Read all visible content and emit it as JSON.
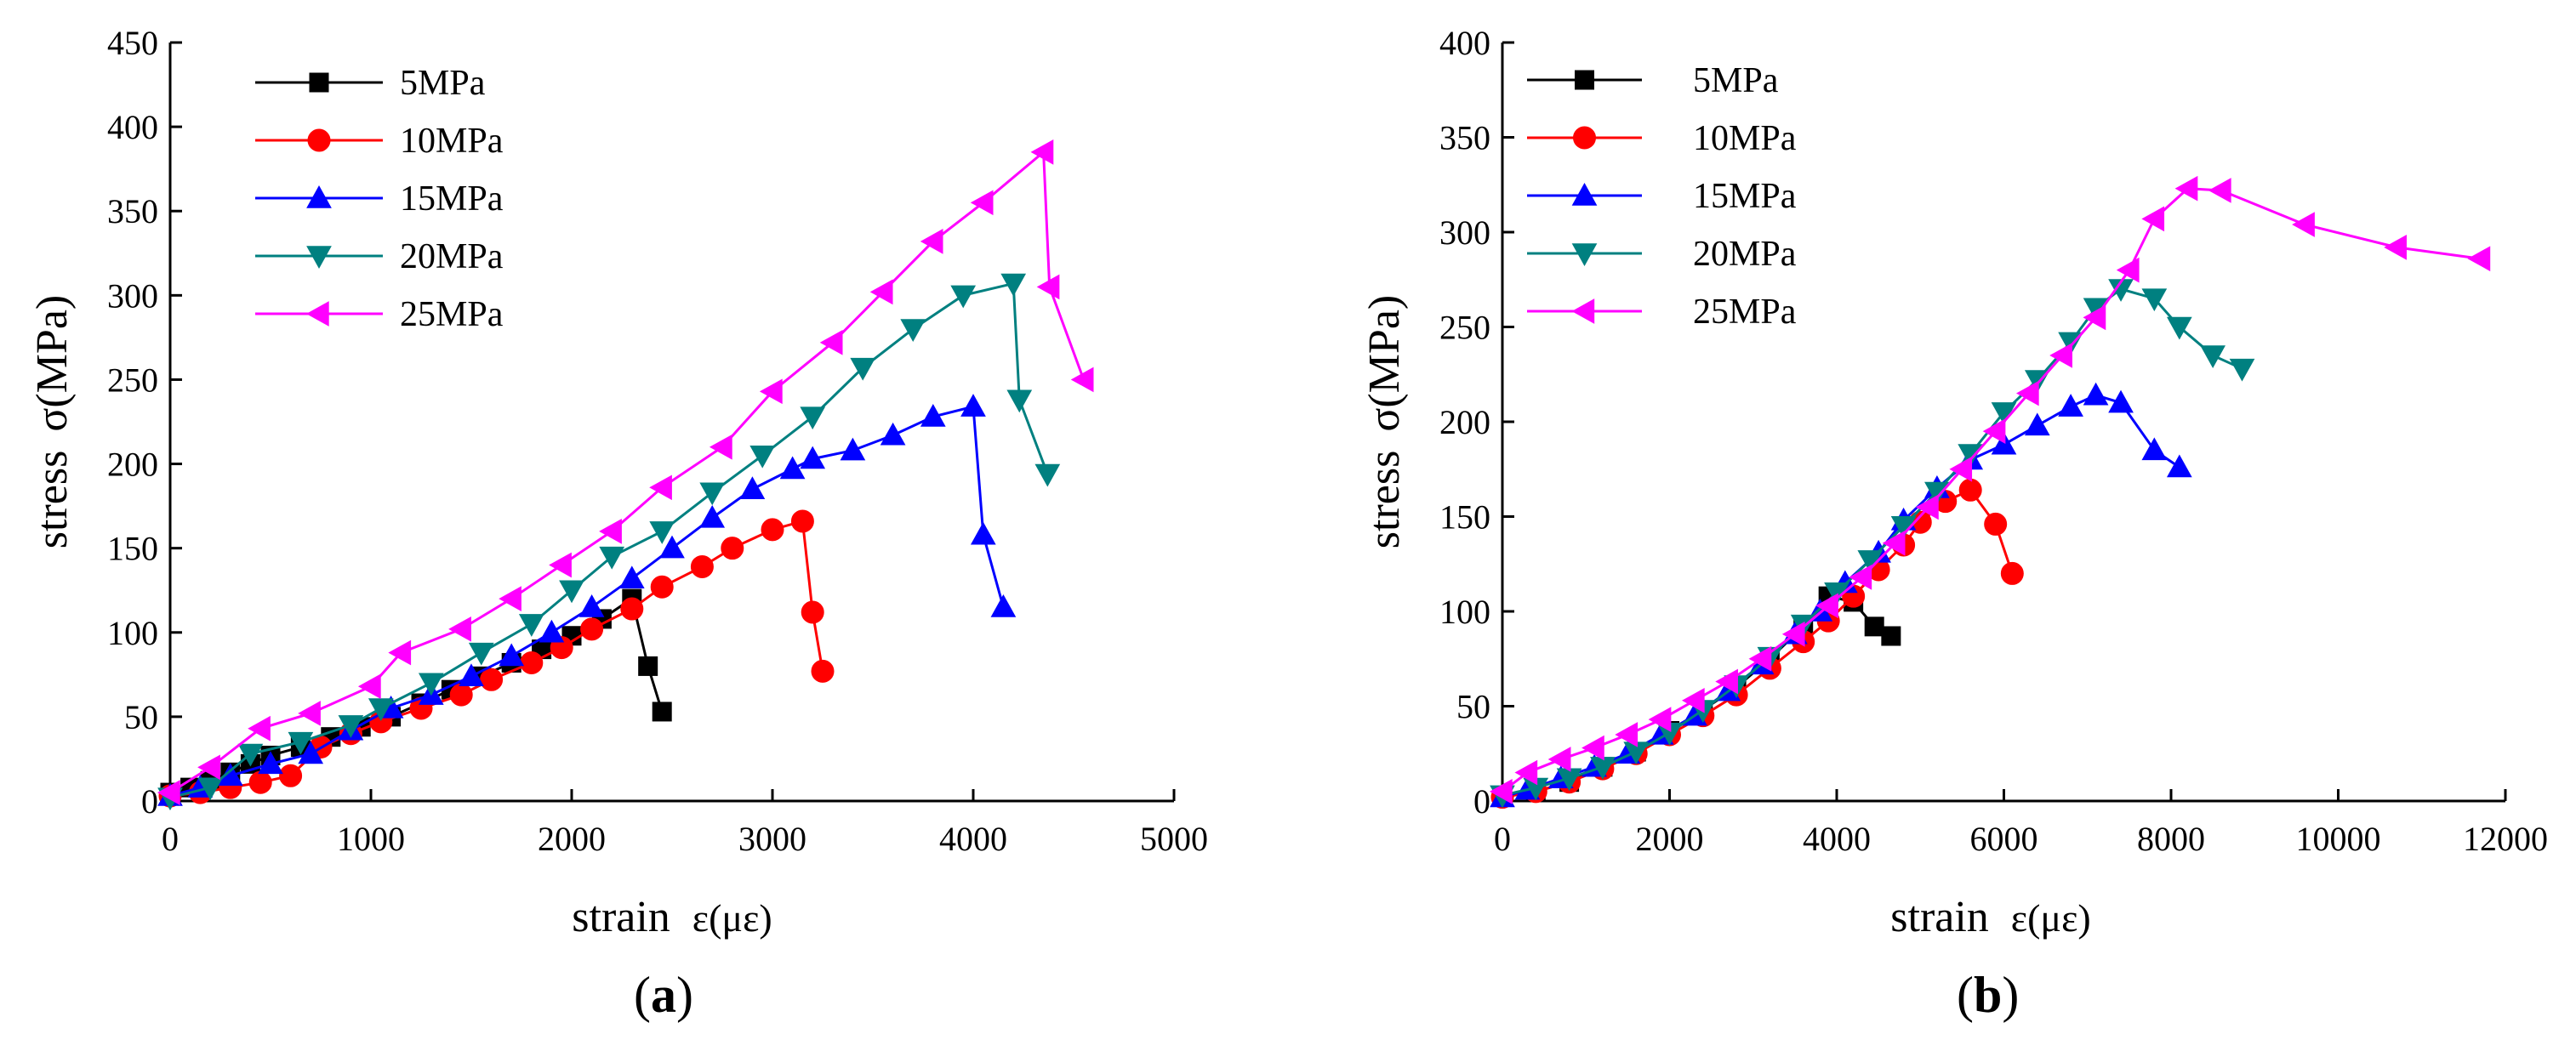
{
  "chart_data": [
    {
      "type": "line",
      "panel_label": "(a)",
      "panel_letter": "a",
      "xlabel_main": "strain",
      "xlabel_symbol": "ε(με)",
      "ylabel_main": "stress",
      "ylabel_symbol": "σ(MPa)",
      "xlim": [
        0,
        5000
      ],
      "ylim": [
        0,
        450
      ],
      "xticks": [
        0,
        1000,
        2000,
        3000,
        4000,
        5000
      ],
      "yticks": [
        0,
        50,
        100,
        150,
        200,
        250,
        300,
        350,
        400,
        450
      ],
      "legend_position": "top-left",
      "series": [
        {
          "name": "5MPa",
          "color": "#000000",
          "marker": "square",
          "x": [
            0,
            100,
            200,
            300,
            400,
            500,
            650,
            800,
            950,
            1100,
            1250,
            1400,
            1550,
            1700,
            1850,
            2000,
            2150,
            2300,
            2380,
            2450
          ],
          "y": [
            5,
            8,
            12,
            17,
            22,
            27,
            32,
            38,
            44,
            50,
            58,
            66,
            74,
            82,
            90,
            98,
            108,
            120,
            80,
            53
          ]
        },
        {
          "name": "10MPa",
          "color": "#ff0000",
          "marker": "circle",
          "x": [
            0,
            150,
            300,
            450,
            600,
            750,
            900,
            1050,
            1250,
            1450,
            1600,
            1800,
            1950,
            2100,
            2300,
            2450,
            2650,
            2800,
            3000,
            3150,
            3200,
            3250
          ],
          "y": [
            3,
            5,
            8,
            11,
            15,
            32,
            40,
            47,
            55,
            63,
            72,
            82,
            91,
            102,
            114,
            127,
            139,
            150,
            161,
            166,
            112,
            77
          ]
        },
        {
          "name": "15MPa",
          "color": "#0000ff",
          "marker": "triangle-up",
          "x": [
            0,
            150,
            300,
            500,
            700,
            900,
            1100,
            1300,
            1500,
            1700,
            1900,
            2100,
            2300,
            2500,
            2700,
            2900,
            3100,
            3200,
            3400,
            3600,
            3800,
            4000,
            4050,
            4150
          ],
          "y": [
            3,
            8,
            15,
            22,
            28,
            42,
            55,
            63,
            74,
            86,
            100,
            115,
            132,
            150,
            168,
            185,
            197,
            203,
            208,
            217,
            228,
            234,
            158,
            115
          ]
        },
        {
          "name": "20MPa",
          "color": "#008080",
          "marker": "triangle-down",
          "x": [
            0,
            200,
            400,
            650,
            900,
            1050,
            1300,
            1550,
            1800,
            2000,
            2200,
            2450,
            2700,
            2950,
            3200,
            3450,
            3700,
            3950,
            4200,
            4230,
            4370
          ],
          "y": [
            2,
            8,
            28,
            35,
            45,
            55,
            70,
            88,
            105,
            125,
            145,
            160,
            183,
            205,
            228,
            257,
            280,
            300,
            307,
            238,
            194
          ]
        },
        {
          "name": "25MPa",
          "color": "#ff00ff",
          "marker": "triangle-left",
          "x": [
            0,
            200,
            450,
            700,
            1000,
            1150,
            1450,
            1700,
            1950,
            2200,
            2450,
            2750,
            3000,
            3300,
            3550,
            3800,
            4050,
            4350,
            4380,
            4550
          ],
          "y": [
            5,
            20,
            43,
            52,
            68,
            88,
            102,
            120,
            140,
            160,
            186,
            210,
            243,
            272,
            302,
            332,
            355,
            385,
            305,
            250
          ]
        }
      ]
    },
    {
      "type": "line",
      "panel_label": "(b)",
      "panel_letter": "b",
      "xlabel_main": "strain",
      "xlabel_symbol": "ε(με)",
      "ylabel_main": "stress",
      "ylabel_symbol": "σ(MPa)",
      "xlim": [
        0,
        12000
      ],
      "ylim": [
        0,
        400
      ],
      "xticks": [
        0,
        2000,
        4000,
        6000,
        8000,
        10000,
        12000
      ],
      "yticks": [
        0,
        50,
        100,
        150,
        200,
        250,
        300,
        350,
        400
      ],
      "legend_position": "top-left",
      "series": [
        {
          "name": "5MPa",
          "color": "#000000",
          "marker": "square",
          "x": [
            0,
            400,
            800,
            1200,
            1600,
            2000,
            2400,
            2800,
            3200,
            3600,
            3900,
            4200,
            4450,
            4650
          ],
          "y": [
            2,
            5,
            10,
            18,
            26,
            37,
            48,
            60,
            75,
            92,
            108,
            105,
            92,
            87
          ]
        },
        {
          "name": "10MPa",
          "color": "#ff0000",
          "marker": "circle",
          "x": [
            0,
            400,
            800,
            1200,
            1600,
            2000,
            2400,
            2800,
            3200,
            3600,
            3900,
            4200,
            4500,
            4800,
            5000,
            5300,
            5600,
            5900,
            6100
          ],
          "y": [
            2,
            5,
            10,
            17,
            25,
            35,
            45,
            56,
            70,
            84,
            95,
            108,
            122,
            135,
            147,
            158,
            164,
            146,
            120
          ]
        },
        {
          "name": "15MPa",
          "color": "#0000ff",
          "marker": "triangle-up",
          "x": [
            0,
            300,
            700,
            1100,
            1500,
            1900,
            2300,
            2700,
            3100,
            3500,
            3800,
            4100,
            4500,
            4800,
            5200,
            5600,
            6000,
            6400,
            6800,
            7100,
            7400,
            7800,
            8100
          ],
          "y": [
            2,
            6,
            12,
            18,
            25,
            35,
            45,
            58,
            72,
            88,
            100,
            115,
            131,
            148,
            165,
            180,
            188,
            198,
            208,
            214,
            210,
            185,
            176
          ]
        },
        {
          "name": "20MPa",
          "color": "#008080",
          "marker": "triangle-down",
          "x": [
            0,
            400,
            800,
            1200,
            1600,
            2000,
            2400,
            2800,
            3200,
            3600,
            4000,
            4400,
            4800,
            5200,
            5600,
            6000,
            6400,
            6800,
            7100,
            7400,
            7800,
            8100,
            8500,
            8850
          ],
          "y": [
            3,
            7,
            12,
            18,
            26,
            36,
            48,
            61,
            76,
            93,
            110,
            127,
            145,
            163,
            183,
            205,
            222,
            242,
            260,
            270,
            265,
            250,
            235,
            228
          ]
        },
        {
          "name": "25MPa",
          "color": "#ff00ff",
          "marker": "triangle-left",
          "x": [
            0,
            300,
            700,
            1100,
            1500,
            1900,
            2300,
            2700,
            3100,
            3500,
            3900,
            4300,
            4700,
            5100,
            5500,
            5900,
            6300,
            6700,
            7100,
            7500,
            7800,
            8200,
            8600,
            9600,
            10700,
            11700
          ],
          "y": [
            5,
            15,
            22,
            28,
            35,
            43,
            53,
            63,
            75,
            88,
            103,
            118,
            136,
            155,
            175,
            195,
            215,
            235,
            255,
            280,
            307,
            323,
            322,
            304,
            292,
            286
          ]
        }
      ]
    }
  ]
}
